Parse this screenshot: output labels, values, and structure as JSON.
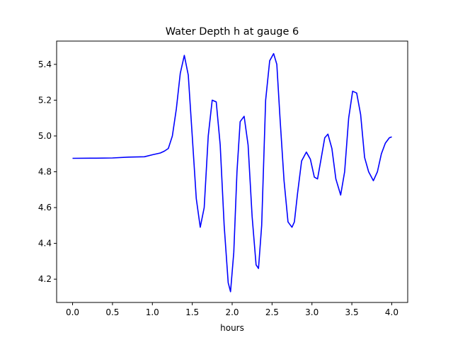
{
  "chart_data": {
    "type": "line",
    "title": "Water Depth h at gauge 6",
    "xlabel": "hours",
    "ylabel": "",
    "xlim": [
      -0.2,
      4.2
    ],
    "ylim": [
      4.07,
      5.53
    ],
    "xticks": [
      0.0,
      0.5,
      1.0,
      1.5,
      2.0,
      2.5,
      3.0,
      3.5,
      4.0
    ],
    "xtick_labels": [
      "0.0",
      "0.5",
      "1.0",
      "1.5",
      "2.0",
      "2.5",
      "3.0",
      "3.5",
      "4.0"
    ],
    "yticks": [
      4.2,
      4.4,
      4.6,
      4.8,
      5.0,
      5.2,
      5.4
    ],
    "ytick_labels": [
      "4.2",
      "4.4",
      "4.6",
      "4.8",
      "5.0",
      "5.2",
      "5.4"
    ],
    "grid": false,
    "color": "#0000ff",
    "series": [
      {
        "name": "",
        "x": [
          0.0,
          0.3,
          0.5,
          0.7,
          0.9,
          1.0,
          1.1,
          1.15,
          1.2,
          1.25,
          1.3,
          1.35,
          1.4,
          1.45,
          1.5,
          1.55,
          1.6,
          1.65,
          1.7,
          1.75,
          1.8,
          1.85,
          1.9,
          1.95,
          1.98,
          2.02,
          2.06,
          2.1,
          2.15,
          2.2,
          2.25,
          2.3,
          2.33,
          2.37,
          2.42,
          2.47,
          2.52,
          2.56,
          2.6,
          2.65,
          2.7,
          2.75,
          2.78,
          2.82,
          2.87,
          2.93,
          2.98,
          3.03,
          3.07,
          3.11,
          3.16,
          3.2,
          3.25,
          3.3,
          3.36,
          3.41,
          3.46,
          3.51,
          3.56,
          3.61,
          3.66,
          3.71,
          3.77,
          3.82,
          3.87,
          3.92,
          3.97,
          4.0
        ],
        "y": [
          4.875,
          4.876,
          4.877,
          4.882,
          4.884,
          4.895,
          4.905,
          4.915,
          4.93,
          5.0,
          5.15,
          5.35,
          5.45,
          5.34,
          5.0,
          4.65,
          4.49,
          4.6,
          5.0,
          5.2,
          5.19,
          4.95,
          4.5,
          4.18,
          4.13,
          4.35,
          4.8,
          5.08,
          5.11,
          4.95,
          4.55,
          4.28,
          4.26,
          4.5,
          5.2,
          5.42,
          5.46,
          5.4,
          5.1,
          4.75,
          4.52,
          4.49,
          4.52,
          4.68,
          4.86,
          4.91,
          4.87,
          4.77,
          4.76,
          4.86,
          4.99,
          5.01,
          4.93,
          4.76,
          4.67,
          4.8,
          5.1,
          5.25,
          5.24,
          5.12,
          4.88,
          4.8,
          4.75,
          4.8,
          4.9,
          4.96,
          4.99,
          4.995
        ]
      }
    ]
  }
}
